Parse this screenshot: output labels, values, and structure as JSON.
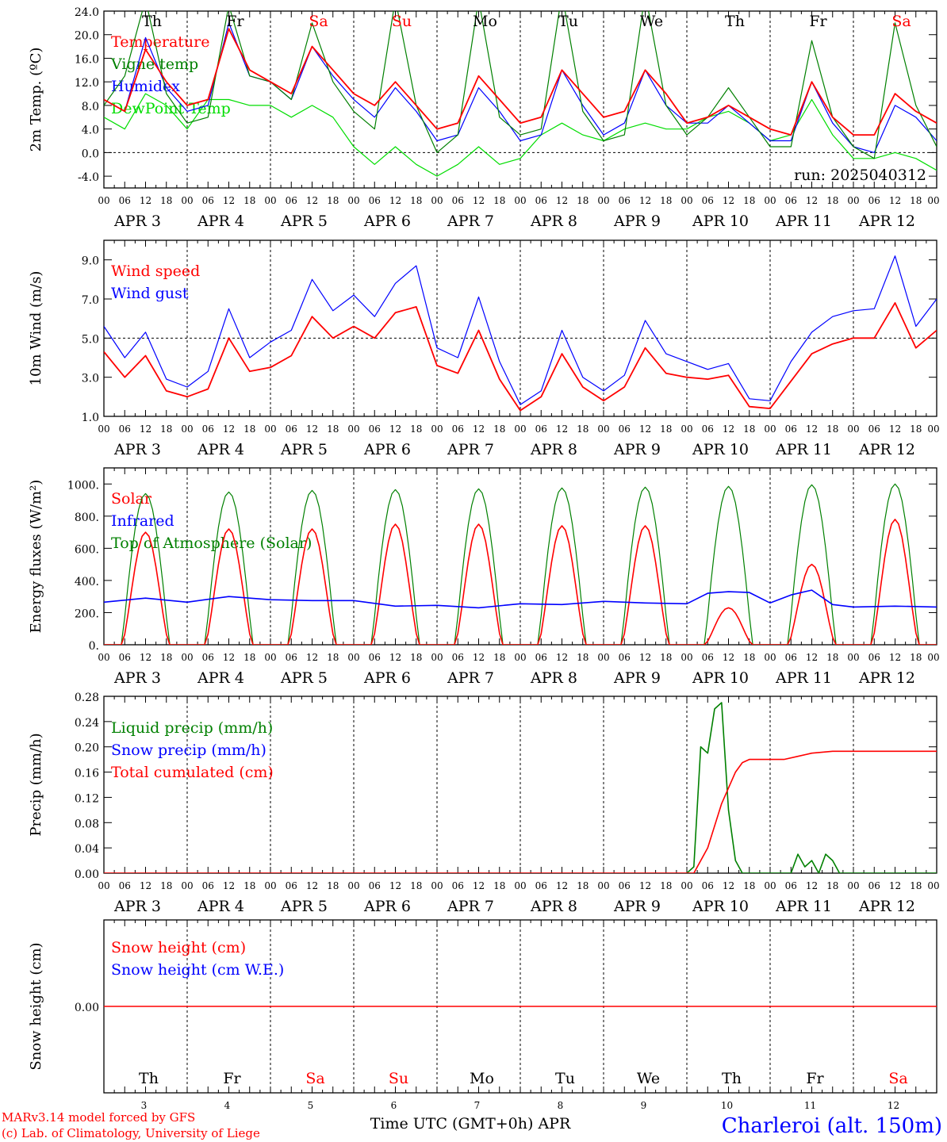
{
  "run_label": "run: 2025040312",
  "x_axis": {
    "days": [
      {
        "date": "APR   3",
        "num": "3",
        "name": "Th",
        "weekend": false
      },
      {
        "date": "APR   4",
        "num": "4",
        "name": "Fr",
        "weekend": false
      },
      {
        "date": "APR   5",
        "num": "5",
        "name": "Sa",
        "weekend": true
      },
      {
        "date": "APR   6",
        "num": "6",
        "name": "Su",
        "weekend": true
      },
      {
        "date": "APR   7",
        "num": "7",
        "name": "Mo",
        "weekend": false
      },
      {
        "date": "APR   8",
        "num": "8",
        "name": "Tu",
        "weekend": false
      },
      {
        "date": "APR   9",
        "num": "9",
        "name": "We",
        "weekend": false
      },
      {
        "date": "APR  10",
        "num": "10",
        "name": "Th",
        "weekend": false
      },
      {
        "date": "APR  11",
        "num": "11",
        "name": "Fr",
        "weekend": false
      },
      {
        "date": "APR  12",
        "num": "12",
        "name": "Sa",
        "weekend": true
      }
    ],
    "hours": [
      "00",
      "06",
      "12",
      "18"
    ],
    "end_hour": "00",
    "xlabel": "Time UTC (GMT+0h) APR"
  },
  "footer": {
    "credit_line1": "MARv3.14 model forced by GFS",
    "credit_line2": "(c) Lab. of Climatology, University of Liege",
    "station": "Charleroi (alt. 150m)"
  },
  "colors": {
    "red": "#ff0000",
    "green": "#008000",
    "blue": "#0000ff",
    "lightgreen": "#00dd00"
  },
  "chart_data": [
    {
      "type": "line",
      "ylabel": "2m Temp. (ºC)",
      "ylim": [
        -6,
        24
      ],
      "yticks": [
        -4,
        0,
        4,
        8,
        12,
        16,
        20,
        24
      ],
      "ytick_labels": [
        "-4.0",
        "0.0",
        "4.0",
        "8.0",
        "12.0",
        "16.0",
        "20.0",
        "24.0"
      ],
      "dashed_y": 0,
      "legend": [
        {
          "label": "Temperature",
          "color": "#ff0000"
        },
        {
          "label": "Vigne temp",
          "color": "#008000"
        },
        {
          "label": "Humidex",
          "color": "#0000ff"
        },
        {
          "label": "DewPoint Temp",
          "color": "#00dd00"
        }
      ],
      "x_hours": [
        0,
        6,
        12,
        18,
        24,
        30,
        36,
        42,
        48,
        54,
        60,
        66,
        72,
        78,
        84,
        90,
        96,
        102,
        108,
        114,
        120,
        126,
        132,
        138,
        144,
        150,
        156,
        162,
        168,
        174,
        180,
        186,
        192,
        198,
        204,
        210,
        216,
        222,
        228,
        234,
        240
      ],
      "series": [
        {
          "name": "Temperature",
          "color": "#ff0000",
          "values": [
            9,
            7,
            17.5,
            12,
            8,
            9,
            21,
            14,
            12,
            10,
            18,
            14,
            10,
            8,
            12,
            8,
            4,
            5,
            13,
            9,
            5,
            6,
            14,
            10,
            6,
            7,
            14,
            10,
            5,
            6,
            8,
            6,
            4,
            3,
            12,
            6,
            3,
            3,
            10,
            7,
            5
          ]
        },
        {
          "name": "Vigne temp",
          "color": "#008000",
          "values": [
            8,
            13,
            26,
            10,
            5,
            6,
            25,
            13,
            12,
            9,
            22,
            12,
            7,
            4,
            26,
            8,
            0,
            3,
            26,
            6,
            3,
            4,
            27,
            7,
            2,
            3,
            27,
            8,
            3,
            6,
            11,
            6,
            1,
            1,
            19,
            6,
            1,
            -1,
            22,
            8,
            1
          ]
        },
        {
          "name": "Humidex",
          "color": "#0000ff",
          "values": [
            9,
            7,
            19.5,
            11,
            7,
            8,
            22,
            13,
            12,
            9,
            18,
            13,
            9,
            6,
            11,
            7,
            2,
            3,
            11,
            7,
            2,
            3,
            14,
            8,
            3,
            5,
            14,
            8,
            5,
            5,
            8,
            5,
            2,
            2,
            12,
            5,
            1,
            0,
            8,
            6,
            2
          ]
        },
        {
          "name": "DewPoint Temp",
          "color": "#00dd00",
          "values": [
            6,
            4,
            10,
            8,
            4,
            9,
            9,
            8,
            8,
            6,
            8,
            6,
            1,
            -2,
            1,
            -2,
            -4,
            -2,
            1,
            -2,
            -1,
            3,
            5,
            3,
            2,
            4,
            5,
            4,
            4,
            6,
            7,
            5,
            2,
            3,
            9,
            3,
            -1,
            -1,
            0,
            -1,
            -3
          ]
        }
      ]
    },
    {
      "type": "line",
      "ylabel": "10m Wind (m/s)",
      "ylim": [
        1,
        10
      ],
      "yticks": [
        1,
        3,
        5,
        7,
        9
      ],
      "ytick_labels": [
        "1.0",
        "3.0",
        "5.0",
        "7.0",
        "9.0"
      ],
      "dashed_y": 5,
      "legend": [
        {
          "label": "Wind speed",
          "color": "#ff0000"
        },
        {
          "label": "Wind gust",
          "color": "#0000ff"
        }
      ],
      "x_hours": [
        0,
        6,
        12,
        18,
        24,
        30,
        36,
        42,
        48,
        54,
        60,
        66,
        72,
        78,
        84,
        90,
        96,
        102,
        108,
        114,
        120,
        126,
        132,
        138,
        144,
        150,
        156,
        162,
        168,
        174,
        180,
        186,
        192,
        198,
        204,
        210,
        216,
        222,
        228,
        234,
        240
      ],
      "series": [
        {
          "name": "Wind speed",
          "color": "#ff0000",
          "values": [
            4.3,
            3,
            4.1,
            2.3,
            2,
            2.4,
            5,
            3.3,
            3.5,
            4.1,
            6.1,
            5,
            5.6,
            5,
            6.3,
            6.6,
            3.6,
            3.2,
            5.4,
            2.9,
            1.3,
            2,
            4.2,
            2.5,
            1.8,
            2.5,
            4.5,
            3.2,
            3,
            2.9,
            3.1,
            1.5,
            1.4,
            2.8,
            4.2,
            4.7,
            5,
            5,
            6.8,
            4.5,
            5.4
          ]
        },
        {
          "name": "Wind gust",
          "color": "#0000ff",
          "values": [
            5.6,
            4,
            5.3,
            2.9,
            2.5,
            3.3,
            6.5,
            4,
            4.8,
            5.4,
            8,
            6.4,
            7.2,
            6.1,
            7.8,
            8.7,
            4.5,
            4,
            7.1,
            3.8,
            1.6,
            2.3,
            5.4,
            3,
            2.3,
            3.1,
            5.9,
            4.2,
            3.8,
            3.4,
            3.7,
            1.9,
            1.8,
            3.8,
            5.3,
            6.1,
            6.4,
            6.5,
            9.2,
            5.6,
            7
          ]
        }
      ]
    },
    {
      "type": "line",
      "ylabel": "Energy fluxes (W/m²)",
      "ylim": [
        0,
        1100
      ],
      "yticks": [
        0,
        200,
        400,
        600,
        800,
        1000
      ],
      "ytick_labels": [
        "0.",
        "200.",
        "400.",
        "600.",
        "800.",
        "1000."
      ],
      "legend": [
        {
          "label": "Solar",
          "color": "#ff0000"
        },
        {
          "label": "Infrared",
          "color": "#0000ff"
        },
        {
          "label": "Top of Atmosphere (Solar)",
          "color": "#008000"
        }
      ],
      "daily_solar_peak": [
        700,
        720,
        720,
        750,
        750,
        740,
        740,
        230,
        500,
        780
      ],
      "daily_toa_peak": [
        940,
        950,
        960,
        965,
        970,
        975,
        980,
        985,
        995,
        1000
      ],
      "infrared_hours": [
        0,
        12,
        24,
        36,
        48,
        60,
        72,
        84,
        96,
        108,
        120,
        132,
        144,
        156,
        168,
        174,
        180,
        186,
        192,
        198,
        204,
        210,
        216,
        228,
        240
      ],
      "infrared_values": [
        265,
        290,
        265,
        300,
        280,
        275,
        275,
        240,
        245,
        230,
        255,
        250,
        270,
        260,
        255,
        320,
        330,
        325,
        260,
        310,
        340,
        250,
        235,
        240,
        235
      ],
      "series": [
        {
          "name": "Solar",
          "color": "#ff0000"
        },
        {
          "name": "Infrared",
          "color": "#0000ff"
        },
        {
          "name": "Top of Atmosphere (Solar)",
          "color": "#008000"
        }
      ]
    },
    {
      "type": "line",
      "ylabel": "Precip (mm/h)",
      "ylim": [
        0,
        0.28
      ],
      "yticks": [
        0,
        0.04,
        0.08,
        0.12,
        0.16,
        0.2,
        0.24,
        0.28
      ],
      "ytick_labels": [
        "0.00",
        "0.04",
        "0.08",
        "0.12",
        "0.16",
        "0.20",
        "0.24",
        "0.28"
      ],
      "legend": [
        {
          "label": "Liquid precip (mm/h)",
          "color": "#008000"
        },
        {
          "label": "Snow precip (mm/h)",
          "color": "#0000ff"
        },
        {
          "label": "Total cumulated (cm)",
          "color": "#ff0000"
        }
      ],
      "series": [
        {
          "name": "Liquid precip (mm/h)",
          "color": "#008000",
          "x_hours": [
            168,
            170,
            172,
            174,
            176,
            178,
            180,
            182,
            184,
            186,
            188,
            190,
            198,
            200,
            202,
            204,
            206,
            208,
            210,
            212,
            240
          ],
          "values": [
            0,
            0.01,
            0.2,
            0.19,
            0.26,
            0.27,
            0.1,
            0.02,
            0,
            0,
            0,
            0,
            0,
            0.03,
            0.01,
            0.02,
            0,
            0.03,
            0.02,
            0,
            0
          ]
        },
        {
          "name": "Total cumulated (cm)",
          "color": "#ff0000",
          "x_hours": [
            0,
            170,
            174,
            178,
            182,
            184,
            186,
            190,
            196,
            200,
            204,
            210,
            216,
            240
          ],
          "values": [
            0,
            0,
            0.04,
            0.11,
            0.16,
            0.175,
            0.18,
            0.18,
            0.18,
            0.185,
            0.19,
            0.193,
            0.193,
            0.193
          ]
        }
      ]
    },
    {
      "type": "line",
      "ylabel": "Snow height (cm)",
      "ylim": [
        -1,
        1
      ],
      "yticks": [
        0
      ],
      "ytick_labels": [
        "0.00"
      ],
      "legend": [
        {
          "label": "Snow height (cm)",
          "color": "#ff0000"
        },
        {
          "label": "Snow height (cm W.E.)",
          "color": "#0000ff"
        }
      ],
      "series": [
        {
          "name": "Snow height (cm)",
          "color": "#ff0000",
          "x_hours": [
            0,
            240
          ],
          "values": [
            0,
            0
          ]
        }
      ]
    }
  ]
}
